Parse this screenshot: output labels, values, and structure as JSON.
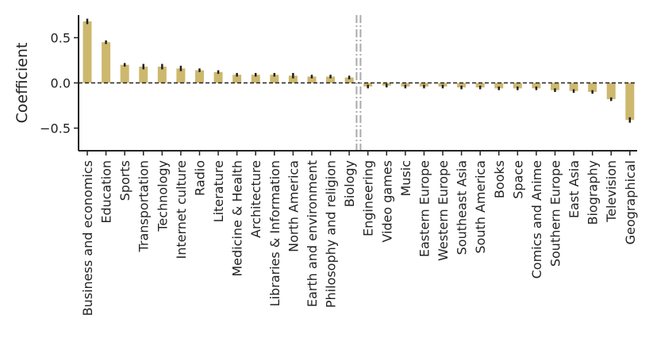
{
  "chart_data": {
    "type": "bar",
    "ylabel": "Coefficient",
    "ylim": [
      -0.75,
      0.75
    ],
    "yticks": [
      -0.5,
      0.0,
      0.5
    ],
    "ytick_labels": [
      "−0.5",
      "0.0",
      "0.5"
    ],
    "bar_color": "#cdb86e",
    "error_color": "#222222",
    "zero_line": "dashed",
    "divider_after_category": "Biology",
    "divider_color": "#aaaaaa",
    "grid": false,
    "categories": [
      "Business and economics",
      "Education",
      "Sports",
      "Transportation",
      "Technology",
      "Internet culture",
      "Radio",
      "Literature",
      "Medicine & Health",
      "Architecture",
      "Libraries & Information",
      "North America",
      "Earth and environment",
      "Philosophy and religion",
      "Biology",
      "Engineering",
      "Video games",
      "Music",
      "Eastern Europe",
      "Western Europe",
      "Southeast Asia",
      "South America",
      "Books",
      "Space",
      "Comics and Anime",
      "Southern Europe",
      "East Asia",
      "Biography",
      "Television",
      "Geographical"
    ],
    "values": [
      0.68,
      0.45,
      0.2,
      0.18,
      0.18,
      0.16,
      0.14,
      0.12,
      0.09,
      0.09,
      0.09,
      0.08,
      0.07,
      0.07,
      0.06,
      -0.04,
      -0.03,
      -0.04,
      -0.04,
      -0.04,
      -0.05,
      -0.05,
      -0.06,
      -0.06,
      -0.06,
      -0.08,
      -0.09,
      -0.1,
      -0.18,
      -0.41
    ],
    "errors": [
      0.03,
      0.02,
      0.02,
      0.03,
      0.03,
      0.03,
      0.02,
      0.02,
      0.02,
      0.02,
      0.02,
      0.03,
      0.02,
      0.02,
      0.02,
      0.02,
      0.02,
      0.02,
      0.02,
      0.02,
      0.02,
      0.02,
      0.02,
      0.02,
      0.02,
      0.02,
      0.02,
      0.02,
      0.02,
      0.03
    ]
  }
}
